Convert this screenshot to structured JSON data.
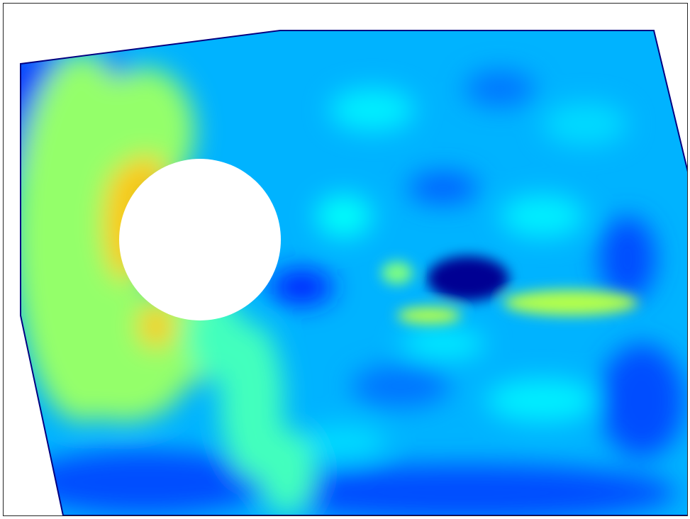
{
  "chart_data": {
    "type": "heatmap",
    "title": "",
    "xlabel": "",
    "ylabel": "",
    "colormap": "jet",
    "colorbar": false,
    "axes_ticks": false,
    "grid": false,
    "hole_color": "#ffffff",
    "background_color": "#ffffff",
    "region_boundary_color": "#000080",
    "colormap_stops": [
      {
        "level": 0.0,
        "color": "#00007f"
      },
      {
        "level": 0.125,
        "color": "#0000ff"
      },
      {
        "level": 0.375,
        "color": "#00ffff"
      },
      {
        "level": 0.625,
        "color": "#ffff00"
      },
      {
        "level": 0.875,
        "color": "#ff0000"
      },
      {
        "level": 1.0,
        "color": "#7f0000"
      }
    ],
    "field_features": [
      {
        "name": "hole-left-edge-high",
        "level": 0.68
      },
      {
        "name": "left-band",
        "level": 0.52
      },
      {
        "name": "lower-diagonal-band",
        "level": 0.44
      },
      {
        "name": "upper-left-dark-corner",
        "level": 0.18
      },
      {
        "name": "central-dark-spot",
        "level": 0.02
      },
      {
        "name": "right-bright-streak",
        "level": 0.55
      },
      {
        "name": "small-bright-spot",
        "level": 0.5
      },
      {
        "name": "bottom-dark-band",
        "level": 0.2
      },
      {
        "name": "background",
        "level": 0.3
      }
    ]
  }
}
